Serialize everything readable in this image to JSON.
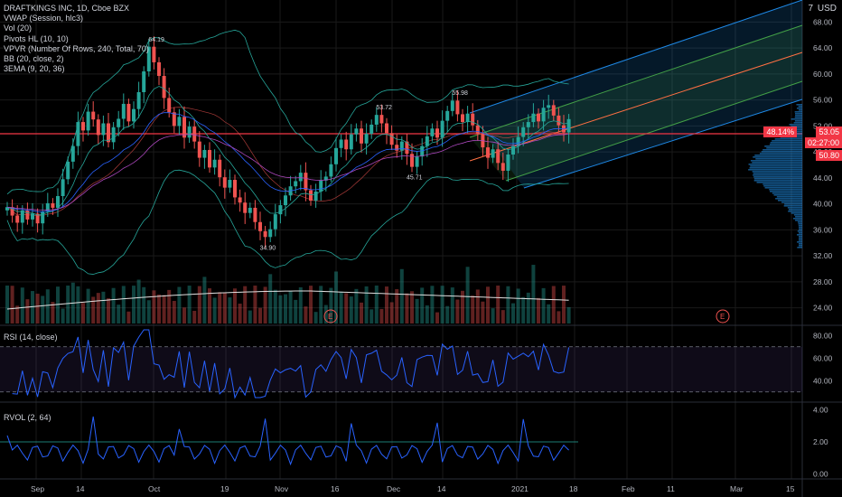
{
  "symbol": {
    "title": "DRAFTKINGS INC, 1D, Cboe BZX",
    "currency": "USD",
    "corner_label": "7"
  },
  "indicators": [
    "VWAP (Session, hlc3)",
    "Vol (20)",
    "Pivots HL (10, 10)",
    "VPVR (Number Of Rows, 240, Total, 70)",
    "BB (20, close, 2)",
    "3EMA (9, 20, 36)"
  ],
  "price_axis": {
    "ticks": [
      "68.00",
      "64.00",
      "60.00",
      "56.00",
      "52.00",
      "48.00",
      "44.00",
      "40.00",
      "36.00",
      "32.00",
      "28.00",
      "24.00"
    ],
    "tick_values": [
      68,
      64,
      60,
      56,
      52,
      48,
      44,
      40,
      36,
      32,
      28,
      24
    ],
    "badges": {
      "pitchfork_pct": "48.14%",
      "last_price": "53.05",
      "countdown": "02:27:00",
      "horizontal_line": "50.80"
    }
  },
  "pivot_labels": [
    {
      "text": "64.19",
      "value": 64.19
    },
    {
      "text": "53.72",
      "value": 53.72
    },
    {
      "text": "55.98",
      "value": 55.98
    },
    {
      "text": "45.71",
      "value": 45.71
    },
    {
      "text": "34.90",
      "value": 34.9
    }
  ],
  "earnings_markers": [
    "E",
    "E"
  ],
  "rsi_pane": {
    "label": "RSI (14, close)",
    "ticks": [
      "80.00",
      "60.00",
      "40.00"
    ],
    "upper": 70,
    "lower": 30
  },
  "rvol_pane": {
    "label": "RVOL (2, 64)",
    "ticks": [
      "4.00",
      "2.00",
      "0.00"
    ]
  },
  "time_axis": {
    "labels": [
      "Sep",
      "14",
      "Oct",
      "19",
      "Nov",
      "16",
      "Dec",
      "14",
      "2021",
      "18",
      "Feb",
      "11",
      "Mar",
      "15"
    ]
  },
  "colors": {
    "up": "#26a69a",
    "down": "#ef5350",
    "bb": "#26a69a",
    "pitchfork_fill": "#1e88e5",
    "hline": "#f23645",
    "rsi_line": "#2962ff",
    "rsi_band": "#7e57c2",
    "rvol_line": "#2962ff"
  },
  "chart_data": {
    "type": "candlestick",
    "x_start_label": "Sep",
    "closes": [
      39.5,
      38.2,
      37.1,
      39.0,
      37.6,
      38.5,
      37.0,
      38.8,
      40.1,
      39.4,
      41.2,
      43.8,
      46.5,
      48.9,
      52.6,
      51.3,
      54.2,
      53.0,
      50.6,
      52.4,
      49.5,
      51.8,
      53.1,
      55.4,
      52.7,
      54.6,
      57.2,
      60.4,
      64.2,
      61.8,
      59.7,
      56.3,
      54.1,
      52.0,
      53.4,
      50.2,
      51.9,
      49.6,
      47.1,
      48.3,
      45.6,
      46.8,
      44.1,
      42.5,
      43.7,
      41.0,
      40.2,
      38.6,
      39.4,
      37.2,
      35.8,
      34.9,
      36.1,
      38.4,
      39.8,
      41.3,
      42.7,
      43.5,
      44.8,
      42.1,
      40.5,
      41.9,
      43.6,
      44.2,
      46.1,
      48.6,
      49.9,
      48.4,
      50.7,
      51.6,
      49.3,
      50.8,
      52.2,
      53.7,
      52.4,
      50.9,
      49.1,
      48.2,
      49.6,
      47.7,
      45.7,
      47.3,
      48.9,
      50.4,
      51.6,
      50.2,
      52.8,
      54.3,
      55.9,
      53.8,
      52.6,
      53.9,
      52.1,
      50.8,
      48.7,
      47.1,
      48.4,
      46.3,
      45.1,
      47.6,
      48.9,
      50.3,
      51.8,
      52.6,
      53.9,
      52.7,
      54.8,
      55.2,
      53.6,
      52.1,
      51.0,
      53.05
    ]
  }
}
